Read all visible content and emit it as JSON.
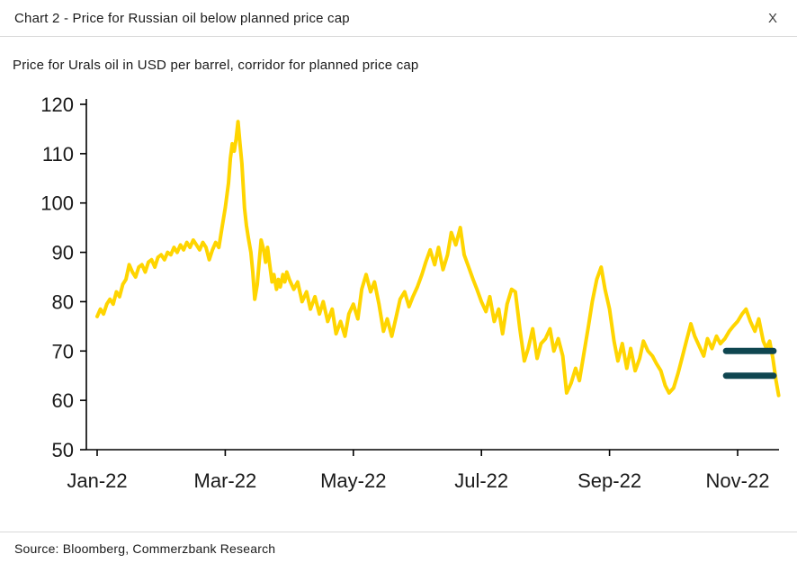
{
  "header": {
    "title": "Chart 2 - Price for Russian oil below planned price cap",
    "close_label": "X"
  },
  "subtitle": "Price for Urals oil in USD per barrel, corridor for planned price cap",
  "footer": {
    "source": "Source: Bloomberg, Commerzbank Research"
  },
  "chart_data": {
    "type": "line",
    "title": "Chart 2 - Price for Russian oil below planned price cap",
    "xlabel": "",
    "ylabel": "Price for Urals oil in USD per barrel",
    "ylim": [
      50,
      120
    ],
    "y_ticks": [
      50,
      60,
      70,
      80,
      90,
      100,
      110,
      120
    ],
    "x_tick_labels": [
      "Jan-22",
      "Mar-22",
      "May-22",
      "Jul-22",
      "Sep-22",
      "Nov-22"
    ],
    "x_tick_months": [
      0,
      2,
      4,
      6,
      8,
      10
    ],
    "grid": false,
    "legend": "none",
    "colors": {
      "axis": "#000000",
      "text": "#1a1a1a"
    },
    "series": [
      {
        "name": "Urals oil price (USD per barrel)",
        "color": "#FFD500",
        "points": [
          [
            0,
            77
          ],
          [
            0.05,
            78.5
          ],
          [
            0.1,
            77.5
          ],
          [
            0.15,
            79.5
          ],
          [
            0.2,
            80.5
          ],
          [
            0.25,
            79.5
          ],
          [
            0.3,
            82
          ],
          [
            0.35,
            81
          ],
          [
            0.4,
            83.5
          ],
          [
            0.45,
            84.5
          ],
          [
            0.5,
            87.5
          ],
          [
            0.55,
            86
          ],
          [
            0.6,
            85
          ],
          [
            0.65,
            87
          ],
          [
            0.7,
            87.5
          ],
          [
            0.75,
            86
          ],
          [
            0.8,
            88
          ],
          [
            0.85,
            88.5
          ],
          [
            0.9,
            87
          ],
          [
            0.95,
            89
          ],
          [
            1,
            89.5
          ],
          [
            1.05,
            88.5
          ],
          [
            1.1,
            90
          ],
          [
            1.15,
            89.5
          ],
          [
            1.2,
            91
          ],
          [
            1.25,
            90
          ],
          [
            1.3,
            91.5
          ],
          [
            1.35,
            90.5
          ],
          [
            1.4,
            92
          ],
          [
            1.45,
            91
          ],
          [
            1.5,
            92.5
          ],
          [
            1.55,
            91.5
          ],
          [
            1.6,
            90.5
          ],
          [
            1.65,
            92
          ],
          [
            1.7,
            91
          ],
          [
            1.75,
            88.5
          ],
          [
            1.8,
            90.5
          ],
          [
            1.85,
            92
          ],
          [
            1.9,
            91
          ],
          [
            1.95,
            95
          ],
          [
            2,
            99
          ],
          [
            2.05,
            104
          ],
          [
            2.08,
            109
          ],
          [
            2.11,
            112
          ],
          [
            2.14,
            110.5
          ],
          [
            2.17,
            113
          ],
          [
            2.2,
            116.5
          ],
          [
            2.23,
            112
          ],
          [
            2.26,
            108
          ],
          [
            2.3,
            99
          ],
          [
            2.33,
            95.5
          ],
          [
            2.36,
            93
          ],
          [
            2.4,
            90
          ],
          [
            2.43,
            86
          ],
          [
            2.46,
            80.5
          ],
          [
            2.5,
            83.5
          ],
          [
            2.53,
            88
          ],
          [
            2.56,
            92.5
          ],
          [
            2.6,
            90.5
          ],
          [
            2.63,
            88
          ],
          [
            2.66,
            91
          ],
          [
            2.7,
            87
          ],
          [
            2.73,
            84
          ],
          [
            2.76,
            85.5
          ],
          [
            2.8,
            82.5
          ],
          [
            2.83,
            84.5
          ],
          [
            2.86,
            83
          ],
          [
            2.9,
            85.5
          ],
          [
            2.93,
            84
          ],
          [
            2.96,
            86
          ],
          [
            3,
            84.5
          ],
          [
            3.07,
            82.5
          ],
          [
            3.13,
            84
          ],
          [
            3.2,
            80
          ],
          [
            3.27,
            82
          ],
          [
            3.33,
            78.5
          ],
          [
            3.4,
            81
          ],
          [
            3.47,
            77.5
          ],
          [
            3.53,
            80
          ],
          [
            3.6,
            76
          ],
          [
            3.67,
            78.5
          ],
          [
            3.73,
            73.5
          ],
          [
            3.8,
            76
          ],
          [
            3.87,
            73
          ],
          [
            3.93,
            77.5
          ],
          [
            4,
            79.5
          ],
          [
            4.07,
            76.5
          ],
          [
            4.13,
            82.5
          ],
          [
            4.2,
            85.5
          ],
          [
            4.27,
            82
          ],
          [
            4.33,
            84
          ],
          [
            4.4,
            79.5
          ],
          [
            4.47,
            74
          ],
          [
            4.53,
            76.5
          ],
          [
            4.6,
            73
          ],
          [
            4.67,
            77
          ],
          [
            4.73,
            80.5
          ],
          [
            4.8,
            82
          ],
          [
            4.87,
            79
          ],
          [
            4.93,
            81
          ],
          [
            5,
            83
          ],
          [
            5.07,
            85.5
          ],
          [
            5.13,
            88
          ],
          [
            5.2,
            90.5
          ],
          [
            5.27,
            87.5
          ],
          [
            5.33,
            91
          ],
          [
            5.4,
            86.5
          ],
          [
            5.47,
            89.5
          ],
          [
            5.53,
            94
          ],
          [
            5.6,
            91.5
          ],
          [
            5.67,
            95
          ],
          [
            5.73,
            89.5
          ],
          [
            5.8,
            87
          ],
          [
            5.87,
            84.5
          ],
          [
            5.93,
            82.5
          ],
          [
            6,
            80
          ],
          [
            6.07,
            78
          ],
          [
            6.13,
            81
          ],
          [
            6.2,
            76
          ],
          [
            6.27,
            78.5
          ],
          [
            6.33,
            73.5
          ],
          [
            6.4,
            79.5
          ],
          [
            6.47,
            82.5
          ],
          [
            6.53,
            82
          ],
          [
            6.6,
            74.5
          ],
          [
            6.67,
            68
          ],
          [
            6.73,
            70.5
          ],
          [
            6.8,
            74.5
          ],
          [
            6.87,
            68.5
          ],
          [
            6.93,
            71.5
          ],
          [
            7,
            72.5
          ],
          [
            7.07,
            74.5
          ],
          [
            7.13,
            70
          ],
          [
            7.2,
            72.5
          ],
          [
            7.27,
            69
          ],
          [
            7.33,
            61.5
          ],
          [
            7.4,
            63.5
          ],
          [
            7.47,
            66.5
          ],
          [
            7.53,
            64
          ],
          [
            7.6,
            69.5
          ],
          [
            7.67,
            75
          ],
          [
            7.73,
            80
          ],
          [
            7.8,
            84.5
          ],
          [
            7.87,
            87
          ],
          [
            7.93,
            82.5
          ],
          [
            8,
            78.5
          ],
          [
            8.07,
            72
          ],
          [
            8.13,
            68
          ],
          [
            8.2,
            71.5
          ],
          [
            8.27,
            66.5
          ],
          [
            8.33,
            70.5
          ],
          [
            8.4,
            66
          ],
          [
            8.47,
            68.5
          ],
          [
            8.53,
            72
          ],
          [
            8.6,
            70
          ],
          [
            8.67,
            69
          ],
          [
            8.73,
            67.5
          ],
          [
            8.8,
            66
          ],
          [
            8.87,
            63
          ],
          [
            8.93,
            61.5
          ],
          [
            9,
            62.5
          ],
          [
            9.07,
            65.5
          ],
          [
            9.13,
            68.5
          ],
          [
            9.2,
            72
          ],
          [
            9.27,
            75.5
          ],
          [
            9.33,
            73
          ],
          [
            9.4,
            71
          ],
          [
            9.47,
            69
          ],
          [
            9.53,
            72.5
          ],
          [
            9.6,
            70.5
          ],
          [
            9.67,
            73
          ],
          [
            9.73,
            71.5
          ],
          [
            9.8,
            72.5
          ],
          [
            9.87,
            74
          ],
          [
            9.93,
            75
          ],
          [
            10,
            76
          ],
          [
            10.07,
            77.5
          ],
          [
            10.13,
            78.5
          ],
          [
            10.2,
            76
          ],
          [
            10.27,
            74
          ],
          [
            10.33,
            76.5
          ],
          [
            10.4,
            72
          ],
          [
            10.45,
            70.5
          ],
          [
            10.5,
            72
          ],
          [
            10.55,
            68.5
          ],
          [
            10.6,
            64
          ],
          [
            10.64,
            61
          ]
        ]
      }
    ],
    "cap_lines": {
      "label": "Corridor for planned price cap",
      "color": "#0F4650",
      "values": [
        70,
        65
      ],
      "x_start": 9.82,
      "x_end": 10.56
    }
  }
}
